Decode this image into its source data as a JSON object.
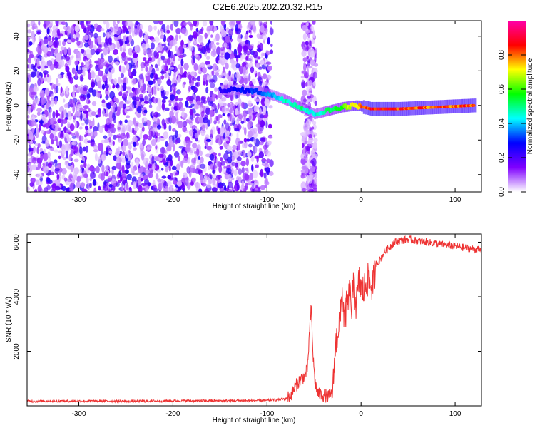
{
  "title": "C2E6.2025.202.20.32.R15",
  "chart_data": [
    {
      "type": "heatmap",
      "title": "C2E6.2025.202.20.32.R15",
      "xlabel": "Height of straight line (km)",
      "ylabel": "Frequency (Hz)",
      "xlim": [
        -355,
        128
      ],
      "ylim": [
        -50,
        49
      ],
      "xticks": [
        -300,
        -200,
        -100,
        0,
        100
      ],
      "yticks": [
        -40,
        -20,
        0,
        20,
        40
      ],
      "colorbar": {
        "label": "Normalized spectral amplitude",
        "range": [
          0,
          1
        ],
        "ticks": [
          "0.0",
          "0.2",
          "0.4",
          "0.6",
          "0.8"
        ],
        "colors": [
          "#ffffff",
          "#7f00ff",
          "#0000ff",
          "#00ffff",
          "#00ff00",
          "#ffff00",
          "#ff0000",
          "#ff00aa"
        ]
      },
      "regions": [
        {
          "name": "noise",
          "x": [
            -355,
            -95
          ],
          "freq": [
            -50,
            49
          ],
          "amplitude": 0.15
        },
        {
          "name": "noise-strip",
          "x": [
            -62,
            -48
          ],
          "freq": [
            -50,
            49
          ],
          "amplitude": 0.1
        }
      ],
      "ridge": [
        {
          "x": -150,
          "freq": 9,
          "amplitude": 0.25
        },
        {
          "x": -130,
          "freq": 9,
          "amplitude": 0.3
        },
        {
          "x": -110,
          "freq": 8,
          "amplitude": 0.35
        },
        {
          "x": -95,
          "freq": 6,
          "amplitude": 0.4
        },
        {
          "x": -80,
          "freq": 3,
          "amplitude": 0.5
        },
        {
          "x": -65,
          "freq": -1,
          "amplitude": 0.55
        },
        {
          "x": -50,
          "freq": -5,
          "amplitude": 0.45
        },
        {
          "x": -35,
          "freq": -3,
          "amplitude": 0.55
        },
        {
          "x": -20,
          "freq": -1,
          "amplitude": 0.65
        },
        {
          "x": -5,
          "freq": 0,
          "amplitude": 0.8
        },
        {
          "x": 10,
          "freq": -2,
          "amplitude": 0.95
        },
        {
          "x": 40,
          "freq": -2,
          "amplitude": 0.9
        },
        {
          "x": 80,
          "freq": -1,
          "amplitude": 0.85
        },
        {
          "x": 120,
          "freq": 0,
          "amplitude": 0.9
        }
      ]
    },
    {
      "type": "line",
      "xlabel": "Height of straight line (km)",
      "ylabel": "SNR (10 * v/v)",
      "xlim": [
        -355,
        128
      ],
      "ylim": [
        0,
        6300
      ],
      "xticks": [
        -300,
        -200,
        -100,
        0,
        100
      ],
      "yticks": [
        2000,
        4000,
        6000
      ],
      "color": "#ee3333",
      "series": [
        {
          "name": "",
          "x": [
            -355,
            -300,
            -250,
            -200,
            -150,
            -120,
            -100,
            -90,
            -80,
            -75,
            -70,
            -65,
            -60,
            -57,
            -55,
            -53,
            -51,
            -49,
            -47,
            -45,
            -40,
            -35,
            -30,
            -28,
            -25,
            -22,
            -20,
            -18,
            -15,
            -12,
            -10,
            -8,
            -5,
            -2,
            0,
            3,
            6,
            10,
            13,
            16,
            20,
            25,
            30,
            35,
            40,
            50,
            60,
            70,
            80,
            90,
            100,
            110,
            120,
            128
          ],
          "y": [
            170,
            175,
            170,
            180,
            185,
            190,
            200,
            220,
            260,
            380,
            700,
            950,
            1100,
            1350,
            2600,
            3600,
            1800,
            900,
            550,
            420,
            380,
            360,
            450,
            1900,
            2700,
            3300,
            4200,
            3200,
            3650,
            4100,
            3550,
            4300,
            3700,
            4600,
            4300,
            4200,
            4650,
            4450,
            4500,
            5200,
            5350,
            5650,
            5800,
            6000,
            6050,
            6100,
            6050,
            6000,
            5950,
            5900,
            5850,
            5800,
            5750,
            5700
          ]
        }
      ]
    }
  ]
}
